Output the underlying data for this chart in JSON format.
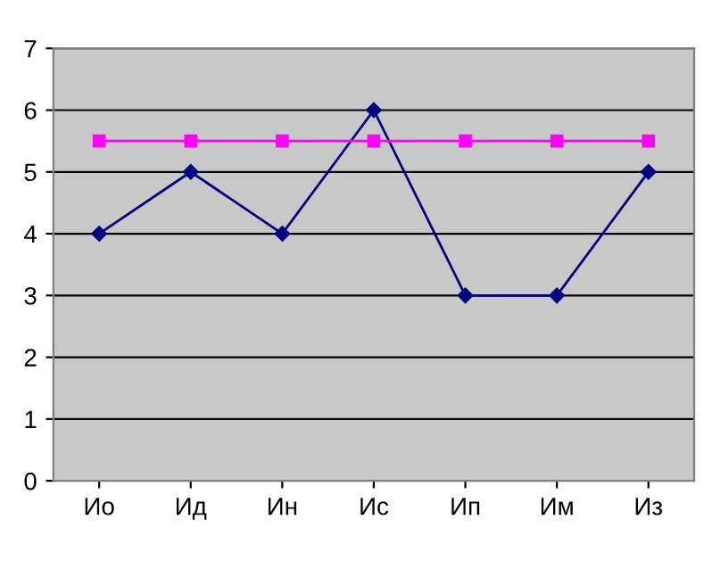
{
  "chart_data": {
    "type": "line",
    "categories": [
      "Ио",
      "Ид",
      "Ин",
      "Ис",
      "Ип",
      "Им",
      "Из"
    ],
    "series": [
      {
        "color": "#000080",
        "values": [
          4,
          5,
          4,
          6,
          3,
          3,
          5
        ],
        "marker": "diamond"
      },
      {
        "color": "#ff00ff",
        "values": [
          5.5,
          5.5,
          5.5,
          5.5,
          5.5,
          5.5,
          5.5
        ],
        "marker": "square"
      }
    ],
    "ylim": [
      0,
      7
    ],
    "yticks": [
      0,
      1,
      2,
      3,
      4,
      5,
      6,
      7
    ],
    "grid": "y",
    "line_style": "solid"
  }
}
